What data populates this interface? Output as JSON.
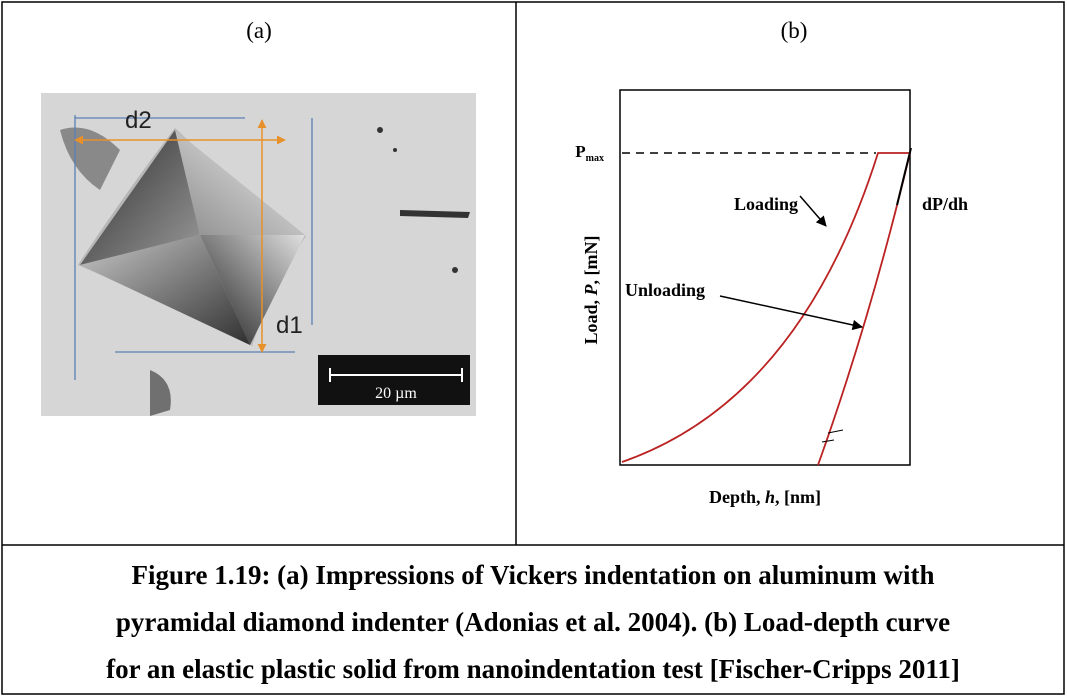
{
  "panel_a": {
    "label": "(a)",
    "d1": "d1",
    "d2": "d2",
    "scale_bar": "20 µm"
  },
  "panel_b": {
    "label": "(b)",
    "pmax": {
      "symbol": "P",
      "subscript": "max"
    },
    "loading": "Loading",
    "unloading": "Unloading",
    "slope": "dP/dh",
    "y_label": {
      "prefix": "Load,  ",
      "variable": "P",
      "suffix": ", [mN]"
    },
    "x_label": {
      "prefix": "Depth, ",
      "variable": "h",
      "suffix": ", [nm]"
    }
  },
  "caption": {
    "lines": [
      "Figure 1.19: (a) Impressions of Vickers indentation on aluminum with",
      "pyramidal diamond indenter (Adonias et al. 2004). (b) Load-depth curve",
      "for an elastic plastic solid from nanoindentation test [Fischer-Cripps 2011]"
    ]
  }
}
